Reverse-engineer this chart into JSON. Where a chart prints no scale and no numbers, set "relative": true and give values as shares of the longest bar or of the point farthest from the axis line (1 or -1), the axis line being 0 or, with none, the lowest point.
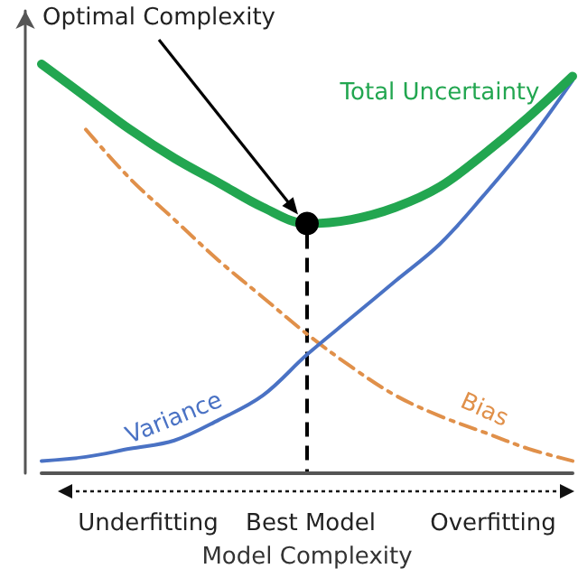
{
  "chart_data": {
    "type": "line",
    "relative": true,
    "xlabel": "Model Complexity",
    "categories": [
      null,
      null,
      null,
      null,
      null,
      null,
      null,
      null,
      null,
      null,
      null,
      null,
      null
    ],
    "series": [
      {
        "name": "Total Uncertainty",
        "color": "#22a650",
        "line_style": "solid",
        "values": [
          1.0,
          0.92,
          0.84,
          0.77,
          0.71,
          0.65,
          0.61,
          0.62,
          0.65,
          0.7,
          0.78,
          0.87,
          0.97
        ]
      },
      {
        "name": "Variance",
        "color": "#4a72c4",
        "line_style": "solid",
        "values": [
          0.03,
          0.04,
          0.06,
          0.08,
          0.13,
          0.19,
          0.29,
          0.38,
          0.47,
          0.56,
          0.68,
          0.81,
          0.96
        ]
      },
      {
        "name": "Bias",
        "color": "#e0904a",
        "line_style": "dashed",
        "values": [
          null,
          0.84,
          0.72,
          0.62,
          0.52,
          0.43,
          0.34,
          0.26,
          0.19,
          0.14,
          0.1,
          0.06,
          0.03
        ]
      }
    ],
    "annotations": [
      "Optimal Complexity",
      "Underfitting",
      "Best Model",
      "Overfitting"
    ],
    "marker": "none",
    "grid": false,
    "legend": false
  }
}
